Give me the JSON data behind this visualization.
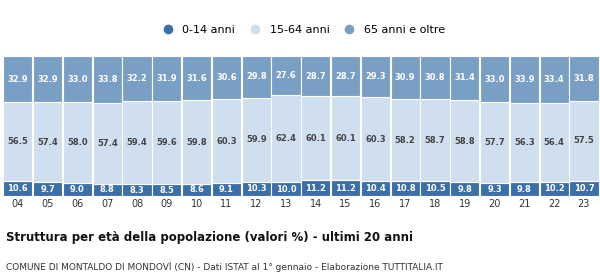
{
  "years": [
    "04",
    "05",
    "06",
    "07",
    "08",
    "09",
    "10",
    "11",
    "12",
    "13",
    "14",
    "15",
    "16",
    "17",
    "18",
    "19",
    "20",
    "21",
    "22",
    "23"
  ],
  "young": [
    10.6,
    9.7,
    9.0,
    8.8,
    8.3,
    8.5,
    8.6,
    9.1,
    10.3,
    10.0,
    11.2,
    11.2,
    10.4,
    10.8,
    10.5,
    9.8,
    9.3,
    9.8,
    10.2,
    10.7
  ],
  "adult": [
    56.5,
    57.4,
    58.0,
    57.4,
    59.4,
    59.6,
    59.8,
    60.3,
    59.9,
    62.4,
    60.1,
    60.1,
    60.3,
    58.2,
    58.7,
    58.8,
    57.7,
    56.3,
    56.4,
    57.5
  ],
  "old": [
    32.9,
    32.9,
    33.0,
    33.8,
    32.2,
    31.9,
    31.6,
    30.6,
    29.8,
    27.6,
    28.7,
    28.7,
    29.3,
    30.9,
    30.8,
    31.4,
    33.0,
    33.9,
    33.4,
    31.8
  ],
  "color_young": "#3b6faa",
  "color_adult": "#d0dff0",
  "color_old": "#7a9fc4",
  "title1": "Struttura per età della popolazione (valori %) - ultimi 20 anni",
  "title2": "COMUNE DI MONTALDO DI MONDOVÌ (CN) - Dati ISTAT al 1° gennaio - Elaborazione TUTTITALIA.IT",
  "legend_labels": [
    "0-14 anni",
    "15-64 anni",
    "65 anni e oltre"
  ],
  "bg_color": "#ffffff",
  "bar_edge_color": "#ffffff",
  "fontsize_values": 6.0,
  "fontsize_years": 7.0,
  "fontsize_title1": 8.5,
  "fontsize_title2": 6.5
}
